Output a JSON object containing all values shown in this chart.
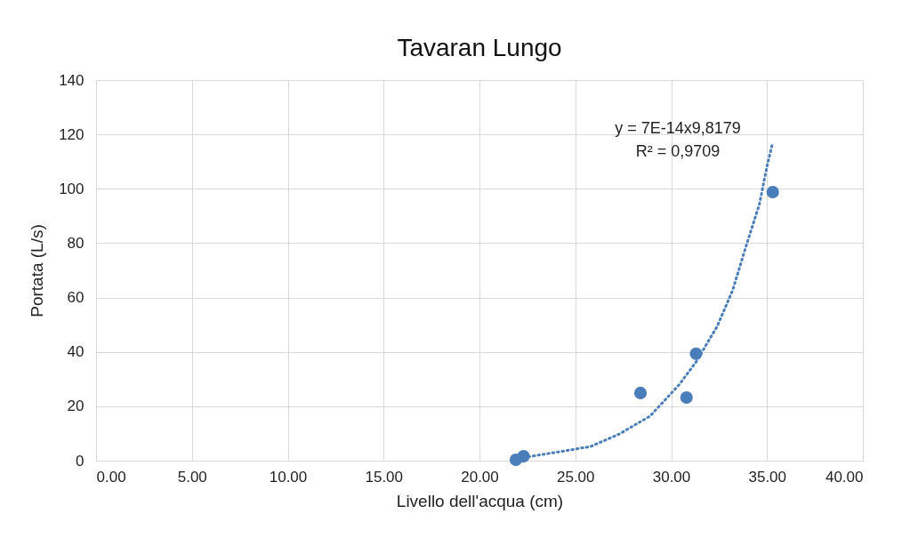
{
  "chart_data": {
    "type": "scatter",
    "title": "Tavaran Lungo",
    "xlabel": "Livello dell'acqua (cm)",
    "ylabel": "Portata (L/s)",
    "series": [
      {
        "color": "#4a7ebb",
        "marker": "circle",
        "x": [
          21.9,
          22.3,
          28.4,
          30.8,
          31.3,
          35.3
        ],
        "values": [
          0.3,
          1.6,
          24.9,
          23.2,
          39.3,
          98.8
        ]
      },
      {
        "type": "line",
        "color": "#4a7ebb",
        "marker": "none",
        "line_style": "dotted",
        "x": [
          22.3,
          22.7,
          24.2,
          25.8,
          27.3,
          28.9,
          30.4,
          31.3,
          32.4,
          33.2,
          33.96,
          34.6,
          35.0,
          35.3
        ],
        "values": [
          1.2,
          1.6,
          3.3,
          5.2,
          9.8,
          16.4,
          27.8,
          36.3,
          49.4,
          62.5,
          80.1,
          94.2,
          108.3,
          117.1
        ]
      }
    ],
    "grid": true,
    "xlim": [
      0,
      40
    ],
    "xticks": [
      {
        "value": 0,
        "label": "0.00"
      },
      {
        "value": 5,
        "label": "5.00"
      },
      {
        "value": 10,
        "label": "10.00"
      },
      {
        "value": 15,
        "label": "15.00"
      },
      {
        "value": 20,
        "label": "20.00"
      },
      {
        "value": 25,
        "label": "25.00"
      },
      {
        "value": 30,
        "label": "30.00"
      },
      {
        "value": 35,
        "label": "35.00"
      },
      {
        "value": 40,
        "label": "40.00"
      }
    ],
    "ylim": [
      0,
      140
    ],
    "yticks": [
      0,
      20,
      40,
      60,
      80,
      100,
      120,
      140
    ],
    "annotations": [
      "y = 7E-14x9,8179",
      "R² = 0,9709"
    ]
  }
}
